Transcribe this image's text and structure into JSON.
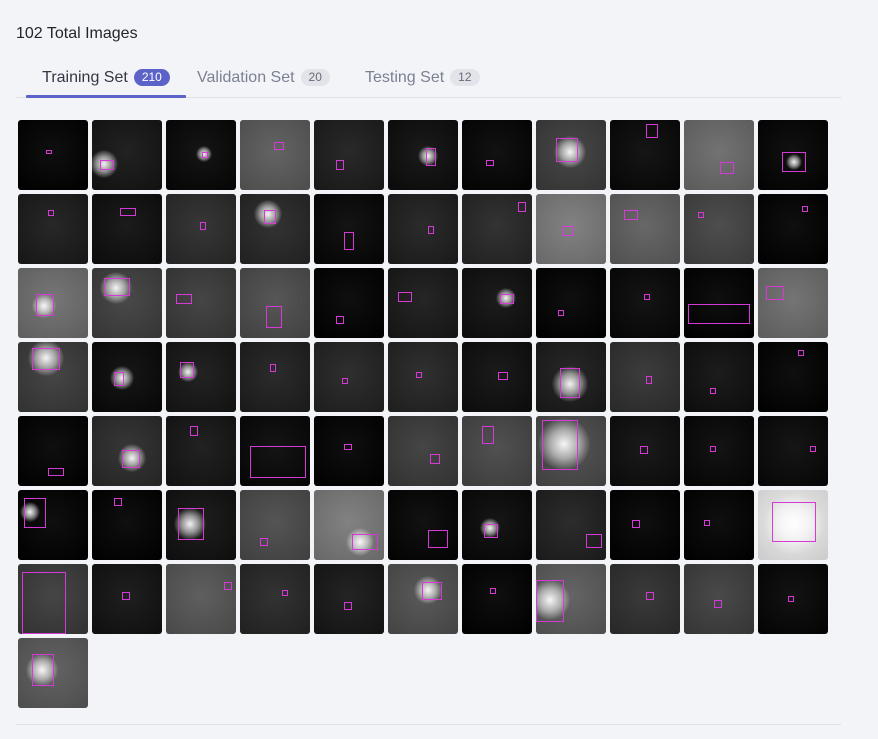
{
  "header": {
    "total_label": "102 Total Images"
  },
  "tabs": [
    {
      "label": "Training Set",
      "count": "210",
      "active": true
    },
    {
      "label": "Validation Set",
      "count": "20",
      "active": false
    },
    {
      "label": "Testing Set",
      "count": "12",
      "active": false
    }
  ],
  "gallery": {
    "images": [
      {
        "bg": "#000000"
      },
      {
        "bg": "#141414"
      },
      {
        "bg": "#060606"
      },
      {
        "bg": "#5a5a5a"
      },
      {
        "bg": "#1c1c1c"
      },
      {
        "bg": "#0c0c0c"
      },
      {
        "bg": "#030303"
      },
      {
        "bg": "#3c3c3c"
      },
      {
        "bg": "#070707"
      },
      {
        "bg": "#6a6a6a"
      },
      {
        "bg": "#020202"
      },
      {
        "bg": "#1a1a1a"
      },
      {
        "bg": "#0d0d0d"
      },
      {
        "bg": "#2a2a2a"
      },
      {
        "bg": "#262626"
      },
      {
        "bg": "#050505"
      },
      {
        "bg": "#1e1e1e"
      },
      {
        "bg": "#262626"
      },
      {
        "bg": "#7a7a7a"
      },
      {
        "bg": "#5e5e5e"
      },
      {
        "bg": "#434343"
      },
      {
        "bg": "#000000"
      },
      {
        "bg": "#6e6e6e"
      },
      {
        "bg": "#3e3e3e"
      },
      {
        "bg": "#3a3a3a"
      },
      {
        "bg": "#4c4c4c"
      },
      {
        "bg": "#000000"
      },
      {
        "bg": "#181818"
      },
      {
        "bg": "#0e0e0e"
      },
      {
        "bg": "#000000"
      },
      {
        "bg": "#060606"
      },
      {
        "bg": "#000000"
      },
      {
        "bg": "#6c6c6c"
      },
      {
        "bg": "#3a3a3a"
      },
      {
        "bg": "#080808"
      },
      {
        "bg": "#151515"
      },
      {
        "bg": "#1e1e1e"
      },
      {
        "bg": "#222222"
      },
      {
        "bg": "#232323"
      },
      {
        "bg": "#0d0d0d"
      },
      {
        "bg": "#1a1a1a"
      },
      {
        "bg": "#303030"
      },
      {
        "bg": "#0e0e0e"
      },
      {
        "bg": "#000000"
      },
      {
        "bg": "#000000"
      },
      {
        "bg": "#2a2a2a"
      },
      {
        "bg": "#141414"
      },
      {
        "bg": "#060606"
      },
      {
        "bg": "#000000"
      },
      {
        "bg": "#3a3a3a"
      },
      {
        "bg": "#464646"
      },
      {
        "bg": "#4a4a4a"
      },
      {
        "bg": "#0c0c0c"
      },
      {
        "bg": "#050505"
      },
      {
        "bg": "#070707"
      },
      {
        "bg": "#000000"
      },
      {
        "bg": "#000000"
      },
      {
        "bg": "#101010"
      },
      {
        "bg": "#4a4a4a"
      },
      {
        "bg": "#7a7a7a"
      },
      {
        "bg": "#030303"
      },
      {
        "bg": "#070707"
      },
      {
        "bg": "#1f1f1f"
      },
      {
        "bg": "#000000"
      },
      {
        "bg": "#000000"
      },
      {
        "bg": "#eeeeee"
      },
      {
        "bg": "#3a3a3a"
      },
      {
        "bg": "#111111"
      },
      {
        "bg": "#555555"
      },
      {
        "bg": "#262626"
      },
      {
        "bg": "#161616"
      },
      {
        "bg": "#4f4f4f"
      },
      {
        "bg": "#000000"
      },
      {
        "bg": "#5b5b5b"
      },
      {
        "bg": "#2e2e2e"
      },
      {
        "bg": "#3e3e3e"
      },
      {
        "bg": "#040404"
      },
      {
        "bg": "#5a5a5a"
      }
    ]
  }
}
